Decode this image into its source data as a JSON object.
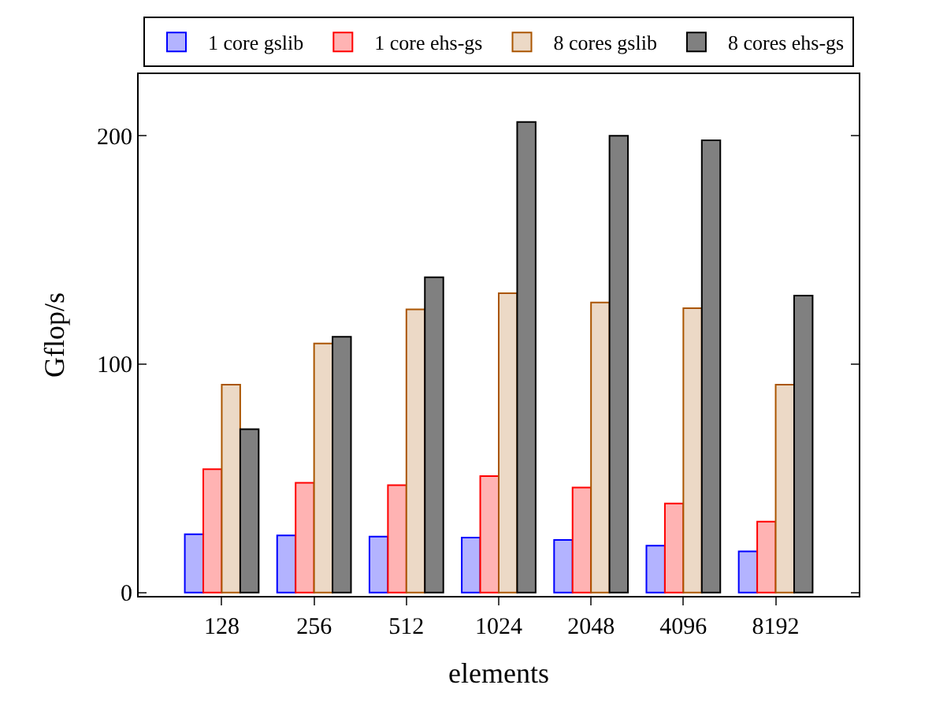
{
  "chart_data": {
    "type": "bar",
    "xlabel": "elements",
    "ylabel": "Gflop/s",
    "categories": [
      "128",
      "256",
      "512",
      "1024",
      "2048",
      "4096",
      "8192"
    ],
    "series": [
      {
        "name": "1 core gslib",
        "color": "#b3b3ff",
        "values": [
          25.5,
          25,
          24.5,
          24,
          23,
          20.5,
          18
        ]
      },
      {
        "name": "1 core ehs-gs",
        "color": "#ffb3b3",
        "values": [
          54,
          48,
          47,
          51,
          46,
          39,
          31
        ]
      },
      {
        "name": "8 cores gslib",
        "color": "#ecd9c6",
        "values": [
          91,
          109,
          124,
          131,
          127,
          124.5,
          91
        ]
      },
      {
        "name": "8 cores ehs-gs",
        "color": "#808080",
        "values": [
          71.5,
          112,
          138,
          206,
          200,
          198,
          130
        ]
      }
    ],
    "ylim": [
      -1.5,
      227
    ],
    "yticks": [
      0,
      100,
      200
    ],
    "legend": "top"
  }
}
